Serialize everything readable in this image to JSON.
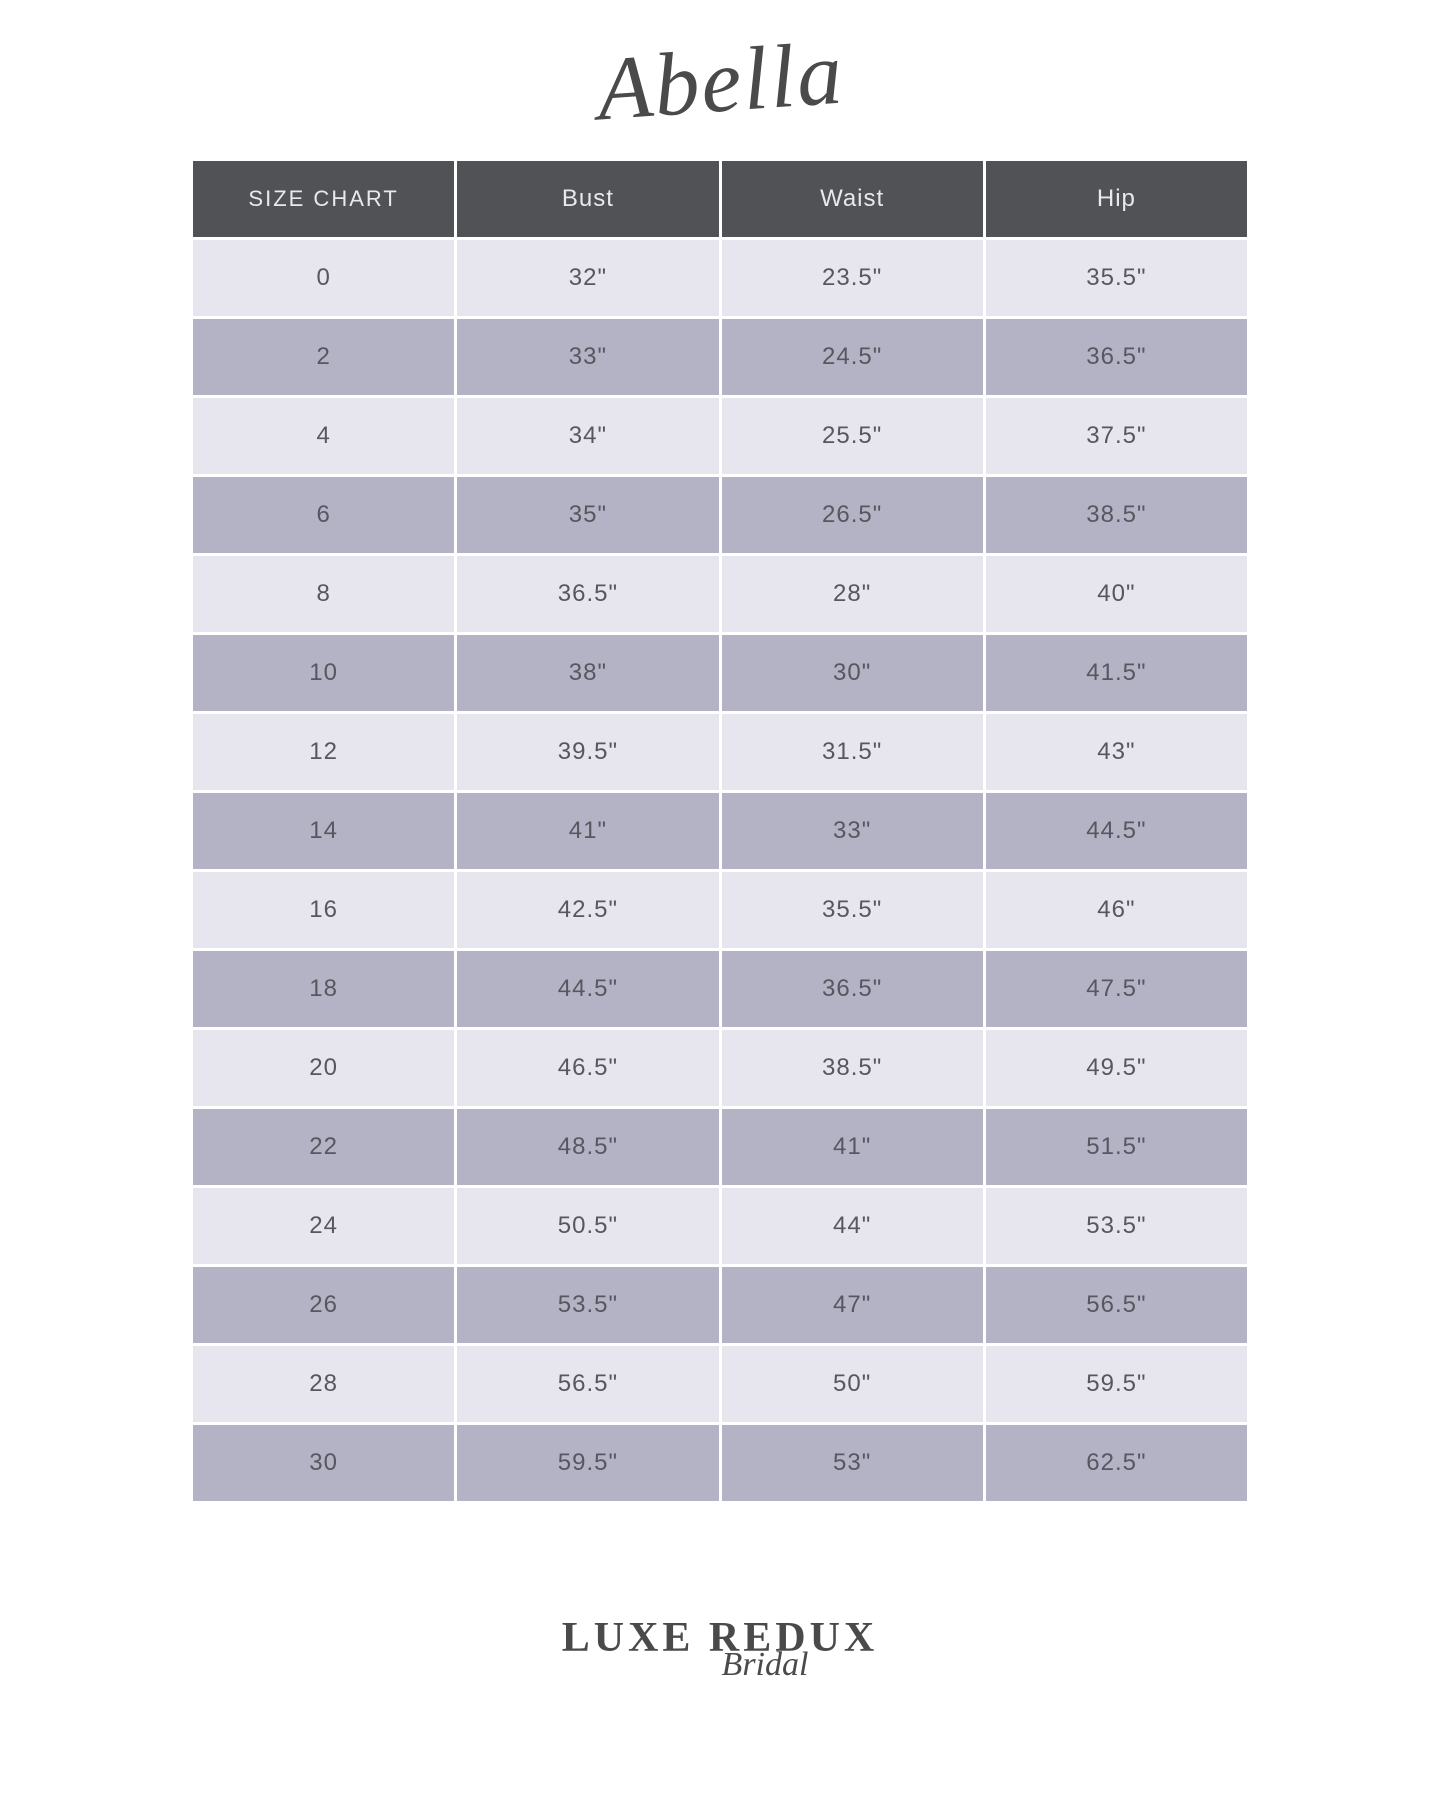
{
  "brand_title": "Abella",
  "table": {
    "type": "table",
    "columns": [
      "SIZE CHART",
      "Bust",
      "Waist",
      "Hip"
    ],
    "header_bg": "#515255",
    "header_text_color": "#e9e8ee",
    "header_fontsize": 24,
    "cell_fontsize": 24,
    "cell_text_color": "#575760",
    "row_light_bg": "#e7e5ee",
    "row_dark_bg": "#b4b3c6",
    "border_spacing": 3,
    "rows": [
      [
        "0",
        "32\"",
        "23.5\"",
        "35.5\""
      ],
      [
        "2",
        "33\"",
        "24.5\"",
        "36.5\""
      ],
      [
        "4",
        "34\"",
        "25.5\"",
        "37.5\""
      ],
      [
        "6",
        "35\"",
        "26.5\"",
        "38.5\""
      ],
      [
        "8",
        "36.5\"",
        "28\"",
        "40\""
      ],
      [
        "10",
        "38\"",
        "30\"",
        "41.5\""
      ],
      [
        "12",
        "39.5\"",
        "31.5\"",
        "43\""
      ],
      [
        "14",
        "41\"",
        "33\"",
        "44.5\""
      ],
      [
        "16",
        "42.5\"",
        "35.5\"",
        "46\""
      ],
      [
        "18",
        "44.5\"",
        "36.5\"",
        "47.5\""
      ],
      [
        "20",
        "46.5\"",
        "38.5\"",
        "49.5\""
      ],
      [
        "22",
        "48.5\"",
        "41\"",
        "51.5\""
      ],
      [
        "24",
        "50.5\"",
        "44\"",
        "53.5\""
      ],
      [
        "26",
        "53.5\"",
        "47\"",
        "56.5\""
      ],
      [
        "28",
        "56.5\"",
        "50\"",
        "59.5\""
      ],
      [
        "30",
        "59.5\"",
        "53\"",
        "62.5\""
      ]
    ]
  },
  "footer": {
    "main": "LUXE REDUX",
    "sub": "Bridal"
  },
  "colors": {
    "page_bg": "#ffffff",
    "title_color": "#4a4a4a",
    "footer_color": "#4a4a4a"
  }
}
